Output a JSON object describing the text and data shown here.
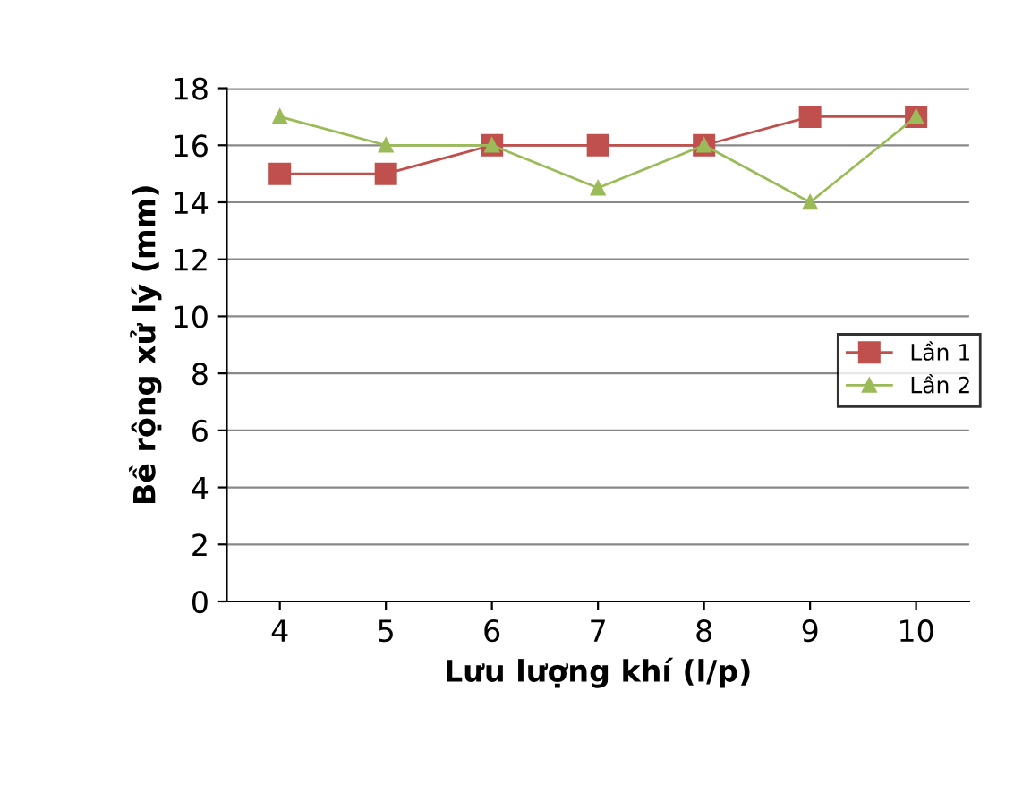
{
  "chart_data": {
    "type": "line",
    "xlabel": "Lưu lượng khí (l/p)",
    "ylabel": "Bề rộng xử lý (mm)",
    "categories": [
      "4",
      "5",
      "6",
      "7",
      "8",
      "9",
      "10"
    ],
    "series": [
      {
        "name": "Lần 1",
        "color": "#c0504d",
        "marker": "square",
        "values": [
          15,
          15,
          16,
          16,
          16,
          17,
          17
        ]
      },
      {
        "name": "Lần 2",
        "color": "#9bbb59",
        "marker": "triangle",
        "values": [
          17,
          16,
          16,
          14.5,
          16,
          14,
          17
        ]
      }
    ],
    "ylim": [
      0,
      18
    ],
    "yticks": [
      0,
      2,
      4,
      6,
      8,
      10,
      12,
      14,
      16,
      18
    ],
    "grid": "y",
    "legend": "right",
    "line_style": "solid"
  }
}
